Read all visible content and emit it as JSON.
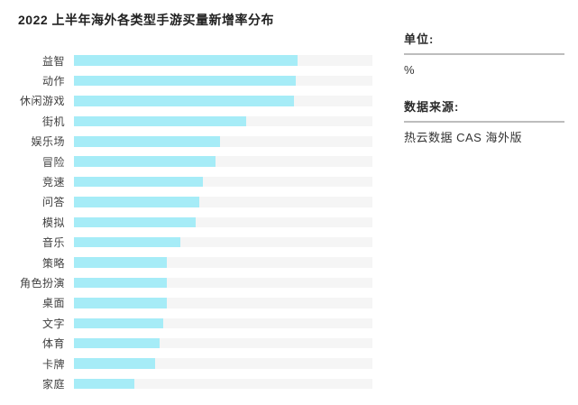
{
  "title": "2022 上半年海外各类型手游买量新增率分布",
  "side_panel": {
    "unit_label": "单位:",
    "unit_value": "%",
    "source_label": "数据来源:",
    "source_value": "热云数据 CAS 海外版"
  },
  "colors": {
    "bar_fill": "#a6ecf7",
    "bar_track": "#f5f5f5",
    "title_text": "#212121",
    "label_text": "#3f3f3f",
    "divider": "#bdbdbd",
    "background": "#ffffff"
  },
  "chart_data": {
    "type": "bar",
    "orientation": "horizontal",
    "title": "2022 上半年海外各类型手游买量新增率分布",
    "unit": "%",
    "xlabel": "",
    "ylabel": "",
    "value_axis_range": [
      0,
      100
    ],
    "grid": false,
    "legend": false,
    "data_labels_shown": false,
    "values_note": "no numeric labels shown in image; values estimated from bar lengths with full track = 100",
    "categories": [
      "益智",
      "动作",
      "休闲游戏",
      "街机",
      "娱乐场",
      "冒险",
      "竞速",
      "问答",
      "模拟",
      "音乐",
      "策略",
      "角色扮演",
      "桌面",
      "文字",
      "体育",
      "卡牌",
      "家庭"
    ],
    "values": [
      75.0,
      74.2,
      73.7,
      57.8,
      48.8,
      47.3,
      43.2,
      42.0,
      40.8,
      35.6,
      31.2,
      31.2,
      31.0,
      29.9,
      28.7,
      27.1,
      20.1
    ]
  }
}
